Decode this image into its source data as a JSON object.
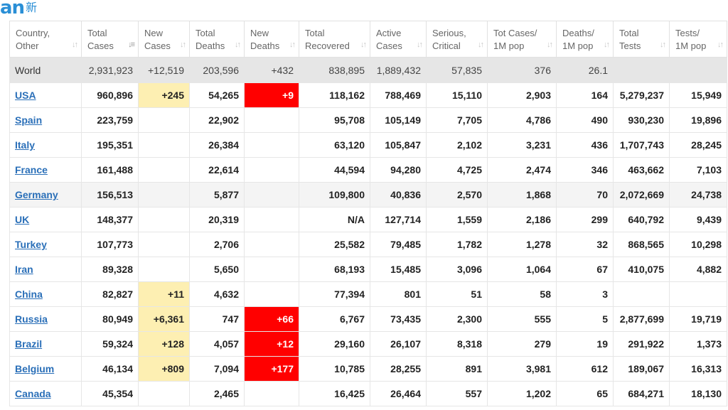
{
  "logo": {
    "main": "an",
    "sub": "新"
  },
  "headers": [
    {
      "l1": "Country,",
      "l2": "Other"
    },
    {
      "l1": "Total",
      "l2": "Cases"
    },
    {
      "l1": "New",
      "l2": "Cases"
    },
    {
      "l1": "Total",
      "l2": "Deaths"
    },
    {
      "l1": "New",
      "l2": "Deaths"
    },
    {
      "l1": "Total",
      "l2": "Recovered"
    },
    {
      "l1": "Active",
      "l2": "Cases"
    },
    {
      "l1": "Serious,",
      "l2": "Critical"
    },
    {
      "l1": "Tot Cases/",
      "l2": "1M pop"
    },
    {
      "l1": "Deaths/",
      "l2": "1M pop"
    },
    {
      "l1": "Total",
      "l2": "Tests"
    },
    {
      "l1": "Tests/",
      "l2": "1M pop"
    }
  ],
  "rows": [
    [
      "World",
      "2,931,923",
      "+12,519",
      "203,596",
      "+432",
      "838,895",
      "1,889,432",
      "57,835",
      "376",
      "26.1",
      "",
      ""
    ],
    [
      "USA",
      "960,896",
      "+245",
      "54,265",
      "+9",
      "118,162",
      "788,469",
      "15,110",
      "2,903",
      "164",
      "5,279,237",
      "15,949"
    ],
    [
      "Spain",
      "223,759",
      "",
      "22,902",
      "",
      "95,708",
      "105,149",
      "7,705",
      "4,786",
      "490",
      "930,230",
      "19,896"
    ],
    [
      "Italy",
      "195,351",
      "",
      "26,384",
      "",
      "63,120",
      "105,847",
      "2,102",
      "3,231",
      "436",
      "1,707,743",
      "28,245"
    ],
    [
      "France",
      "161,488",
      "",
      "22,614",
      "",
      "44,594",
      "94,280",
      "4,725",
      "2,474",
      "346",
      "463,662",
      "7,103"
    ],
    [
      "Germany",
      "156,513",
      "",
      "5,877",
      "",
      "109,800",
      "40,836",
      "2,570",
      "1,868",
      "70",
      "2,072,669",
      "24,738"
    ],
    [
      "UK",
      "148,377",
      "",
      "20,319",
      "",
      "N/A",
      "127,714",
      "1,559",
      "2,186",
      "299",
      "640,792",
      "9,439"
    ],
    [
      "Turkey",
      "107,773",
      "",
      "2,706",
      "",
      "25,582",
      "79,485",
      "1,782",
      "1,278",
      "32",
      "868,565",
      "10,298"
    ],
    [
      "Iran",
      "89,328",
      "",
      "5,650",
      "",
      "68,193",
      "15,485",
      "3,096",
      "1,064",
      "67",
      "410,075",
      "4,882"
    ],
    [
      "China",
      "82,827",
      "+11",
      "4,632",
      "",
      "77,394",
      "801",
      "51",
      "58",
      "3",
      "",
      ""
    ],
    [
      "Russia",
      "80,949",
      "+6,361",
      "747",
      "+66",
      "6,767",
      "73,435",
      "2,300",
      "555",
      "5",
      "2,877,699",
      "19,719"
    ],
    [
      "Brazil",
      "59,324",
      "+128",
      "4,057",
      "+12",
      "29,160",
      "26,107",
      "8,318",
      "279",
      "19",
      "291,922",
      "1,373"
    ],
    [
      "Belgium",
      "46,134",
      "+809",
      "7,094",
      "+177",
      "10,785",
      "28,255",
      "891",
      "3,981",
      "612",
      "189,067",
      "16,313"
    ],
    [
      "Canada",
      "45,354",
      "",
      "2,465",
      "",
      "16,425",
      "26,464",
      "557",
      "1,202",
      "65",
      "684,271",
      "18,130"
    ]
  ],
  "colors": {
    "new_cases_highlight": "#fdefb2",
    "new_deaths_highlight": "#ff0000",
    "link": "#2a6fb8"
  }
}
